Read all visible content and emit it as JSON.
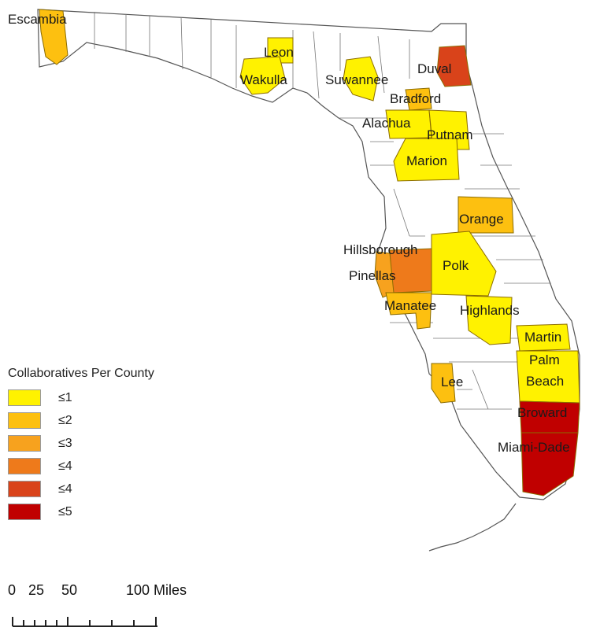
{
  "colors": {
    "le1": "#FFF200",
    "le2": "#FDC010",
    "le3": "#F7A21E",
    "le4a": "#EE7A1B",
    "le4b": "#D9431A",
    "le5": "#C00000",
    "state_fill": "#FFFFFF",
    "border": "#555555"
  },
  "legend": {
    "title": "Collaboratives Per County",
    "items": [
      {
        "label": "≤1",
        "color": "#FFF200"
      },
      {
        "label": "≤2",
        "color": "#FDC010"
      },
      {
        "label": "≤3",
        "color": "#F7A21E"
      },
      {
        "label": "≤4",
        "color": "#EE7A1B"
      },
      {
        "label": "≤4",
        "color": "#D9431A"
      },
      {
        "label": "≤5",
        "color": "#C00000"
      }
    ]
  },
  "counties": [
    {
      "name": "Escambia",
      "class": "le2"
    },
    {
      "name": "Leon",
      "class": "le1"
    },
    {
      "name": "Wakulla",
      "class": "le1"
    },
    {
      "name": "Suwannee",
      "class": "le1"
    },
    {
      "name": "Duval",
      "class": "le4b"
    },
    {
      "name": "Bradford",
      "class": "le2"
    },
    {
      "name": "Alachua",
      "class": "le1"
    },
    {
      "name": "Putnam",
      "class": "le1"
    },
    {
      "name": "Marion",
      "class": "le1"
    },
    {
      "name": "Orange",
      "class": "le2"
    },
    {
      "name": "Hillsborough",
      "class": "le4a"
    },
    {
      "name": "Pinellas",
      "class": "le3"
    },
    {
      "name": "Polk",
      "class": "le1"
    },
    {
      "name": "Manatee",
      "class": "le2"
    },
    {
      "name": "Highlands",
      "class": "le1"
    },
    {
      "name": "Martin",
      "class": "le1"
    },
    {
      "name": "Palm Beach",
      "class": "le1"
    },
    {
      "name": "Lee",
      "class": "le2"
    },
    {
      "name": "Broward",
      "class": "le5"
    },
    {
      "name": "Miami-Dade",
      "class": "le5"
    }
  ],
  "scale": {
    "ticks": [
      "0",
      "25",
      "50",
      "100 Miles"
    ]
  }
}
